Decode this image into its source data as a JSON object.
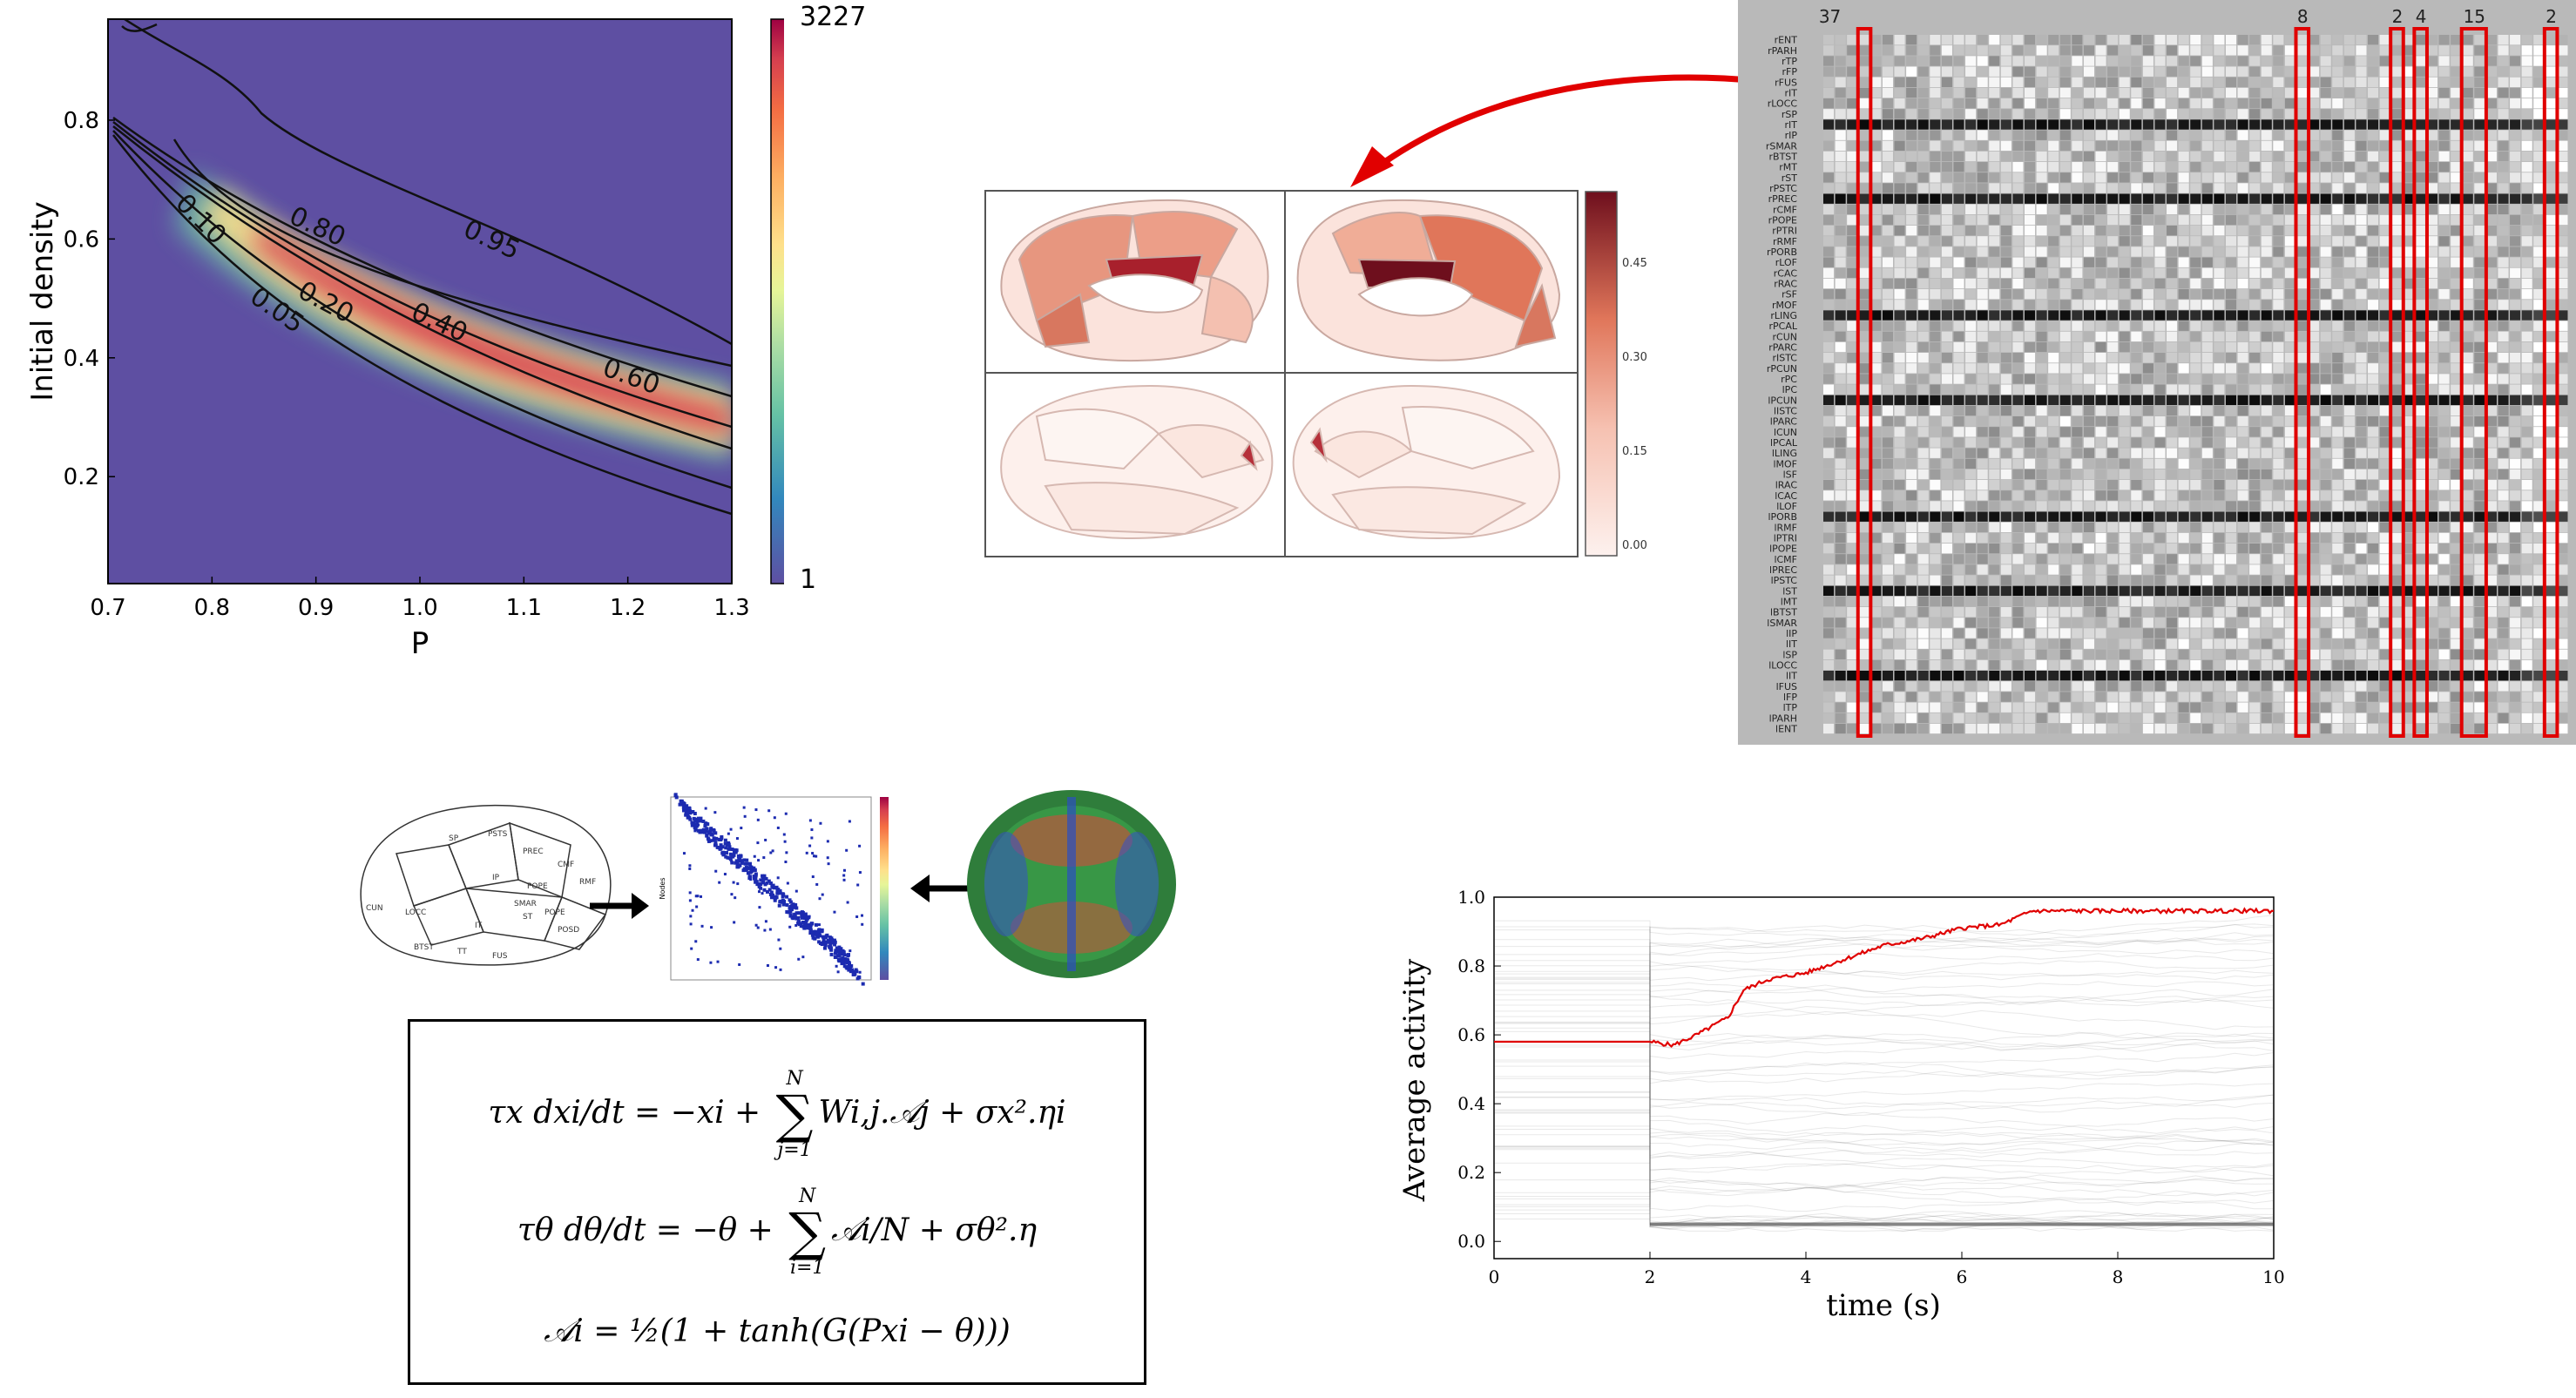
{
  "heatmap": {
    "xlabel": "P",
    "ylabel": "Initial density",
    "xticks": [
      "0.7",
      "0.8",
      "0.9",
      "1.0",
      "1.1",
      "1.2",
      "1.3"
    ],
    "yticks": [
      "0.8",
      "0.6",
      "0.4",
      "0.2"
    ],
    "colorbar": {
      "max": "3227",
      "min": "1"
    },
    "contour_labels": [
      "0.95",
      "0.80",
      "0.60",
      "0.40",
      "0.20",
      "0.10",
      "0.05"
    ]
  },
  "brain_map": {
    "colorbar_ticks": [
      "0.45",
      "0.30",
      "0.15",
      "0.00"
    ],
    "colors": {
      "low": "#fbeae6",
      "mid": "#e8957e",
      "high": "#6e0f1d"
    }
  },
  "raster": {
    "highlight_counts": [
      "37",
      "8",
      "2",
      "4",
      "15",
      "2"
    ],
    "row_labels": [
      "rENT",
      "rPARH",
      "rTP",
      "rFP",
      "rFUS",
      "rIT",
      "rLOCC",
      "rSP",
      "rIT",
      "rIP",
      "rSMAR",
      "rBTST",
      "rMT",
      "rST",
      "rPSTC",
      "rPREC",
      "rCMF",
      "rPOPE",
      "rPTRI",
      "rRMF",
      "rPORB",
      "rLOF",
      "rCAC",
      "rRAC",
      "rSF",
      "rMOF",
      "rLING",
      "rPCAL",
      "rCUN",
      "rPARC",
      "rISTC",
      "rPCUN",
      "rPC",
      "lPC",
      "lPCUN",
      "lISTC",
      "lPARC",
      "lCUN",
      "lPCAL",
      "lLING",
      "lMOF",
      "lSF",
      "lRAC",
      "lCAC",
      "lLOF",
      "lPORB",
      "lRMF",
      "lPTRI",
      "lPOPE",
      "lCMF",
      "lPREC",
      "lPSTC",
      "lST",
      "lMT",
      "lBTST",
      "lSMAR",
      "lIP",
      "lIT",
      "lSP",
      "lLOCC",
      "lIT",
      "lFUS",
      "lFP",
      "lTP",
      "lPARH",
      "lENT"
    ]
  },
  "pipeline": {
    "brain_regions": [
      "CUN",
      "SP",
      "PSTS",
      "PREC",
      "CMF",
      "RMF",
      "POPE",
      "SMAR",
      "IP",
      "LOCC",
      "BTST",
      "TT",
      "FUS",
      "ST",
      "IT",
      "POPE",
      "POSD"
    ],
    "matrix_label": "Nodes"
  },
  "equations": {
    "eq1_lhs": "τx dxi/dt = −xi + ",
    "eq1_sum_top": "N",
    "eq1_sum_bottom": "j=1",
    "eq1_rhs": "Wi,j.𝒜j + σx².ηi",
    "eq2_lhs": "τθ dθ/dt = −θ + ",
    "eq2_sum_top": "N",
    "eq2_sum_bottom": "i=1",
    "eq2_rhs": "𝒜i/N  + σθ².η",
    "eq3": "𝒜i = ½(1 + tanh(G(Pxi − θ)))"
  },
  "activity_plot": {
    "xlabel": "time (s)",
    "ylabel": "Average activity",
    "xticks": [
      "0",
      "2",
      "4",
      "6",
      "8",
      "10"
    ],
    "yticks": [
      "1.0",
      "0.8",
      "0.6",
      "0.4",
      "0.2",
      "0.0"
    ],
    "colors": {
      "mean_trace": "#e00000",
      "background_traces": "#444444"
    }
  },
  "chart_data": [
    {
      "type": "heatmap",
      "xlabel": "P",
      "ylabel": "Initial density",
      "xlim": [
        0.7,
        1.3
      ],
      "ylim": [
        0.02,
        0.97
      ],
      "colorbar_range": [
        1,
        3227
      ],
      "contour_levels": [
        0.05,
        0.1,
        0.2,
        0.4,
        0.6,
        0.8,
        0.95
      ]
    },
    {
      "type": "line",
      "xlabel": "time (s)",
      "ylabel": "Average activity",
      "xlim": [
        0,
        10
      ],
      "ylim": [
        -0.05,
        1.0
      ],
      "series": [
        {
          "name": "",
          "x": [
            0,
            2,
            2.3,
            2.6,
            3.0,
            3.2,
            3.5,
            4.0,
            4.5,
            5.0,
            5.5,
            6.0,
            6.5,
            6.9,
            7.5,
            8.0,
            9.0,
            10.0
          ],
          "values": [
            0.58,
            0.58,
            0.57,
            0.6,
            0.65,
            0.73,
            0.76,
            0.78,
            0.82,
            0.86,
            0.88,
            0.91,
            0.92,
            0.96,
            0.96,
            0.96,
            0.96,
            0.96
          ]
        }
      ]
    }
  ]
}
